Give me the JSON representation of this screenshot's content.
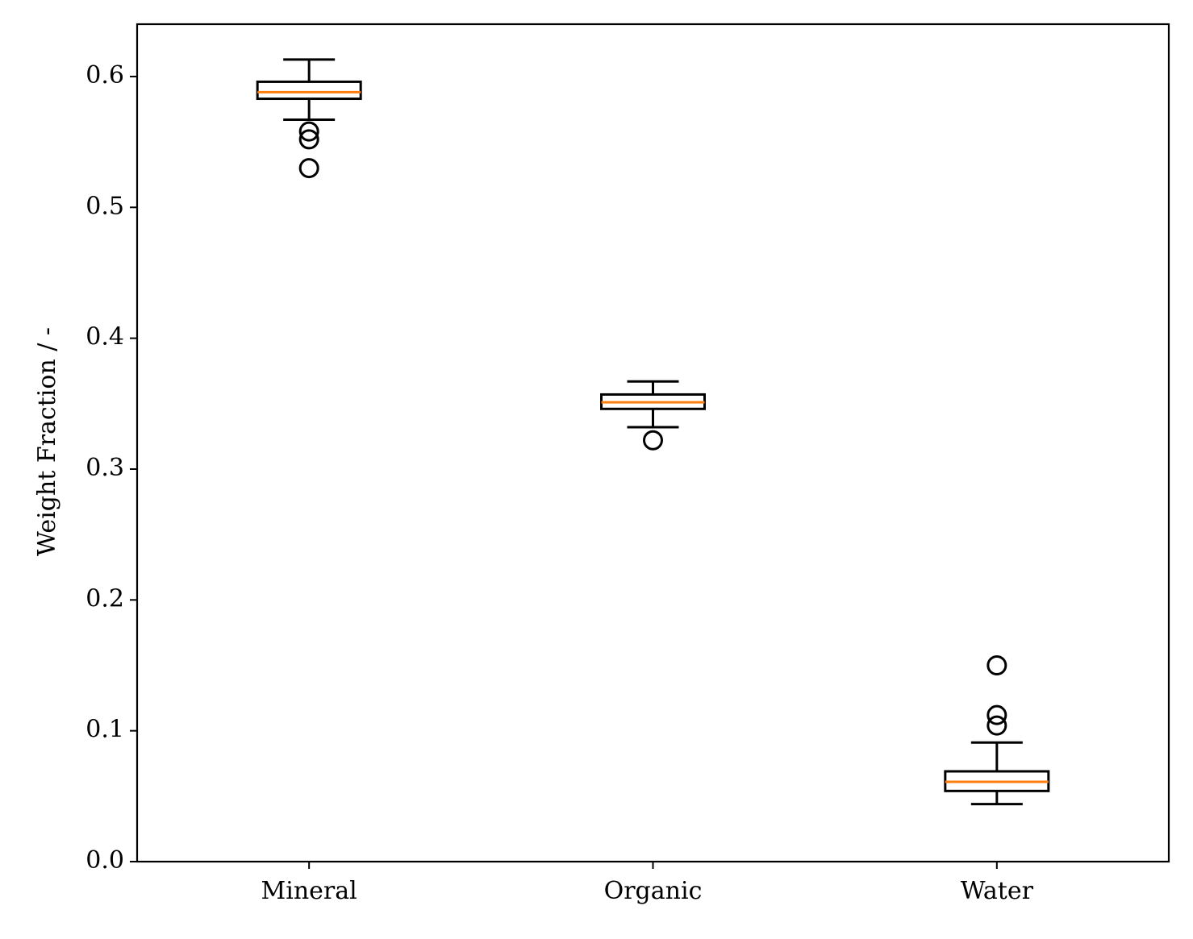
{
  "chart_data": {
    "type": "box",
    "title": "",
    "xlabel": "",
    "ylabel": "Weight Fraction / -",
    "ylim": [
      0.0,
      0.64
    ],
    "xlim": [
      0.5,
      3.5
    ],
    "yticks": [
      {
        "value": 0.0,
        "label": "0.0"
      },
      {
        "value": 0.1,
        "label": "0.1"
      },
      {
        "value": 0.2,
        "label": "0.2"
      },
      {
        "value": 0.3,
        "label": "0.3"
      },
      {
        "value": 0.4,
        "label": "0.4"
      },
      {
        "value": 0.5,
        "label": "0.5"
      },
      {
        "value": 0.6,
        "label": "0.6"
      }
    ],
    "grid": false,
    "legend": "none",
    "colors": {
      "box": "#000000",
      "median": "#ff7f0e"
    },
    "categories": [
      "Mineral",
      "Organic",
      "Water"
    ],
    "boxes": [
      {
        "category": "Mineral",
        "whisker_low": 0.567,
        "q1": 0.583,
        "median": 0.588,
        "q3": 0.596,
        "whisker_high": 0.613,
        "outliers": [
          0.558,
          0.552,
          0.53
        ]
      },
      {
        "category": "Organic",
        "whisker_low": 0.332,
        "q1": 0.346,
        "median": 0.351,
        "q3": 0.357,
        "whisker_high": 0.367,
        "outliers": [
          0.322
        ]
      },
      {
        "category": "Water",
        "whisker_low": 0.044,
        "q1": 0.054,
        "median": 0.061,
        "q3": 0.069,
        "whisker_high": 0.091,
        "outliers": [
          0.15,
          0.112,
          0.104
        ]
      }
    ]
  }
}
